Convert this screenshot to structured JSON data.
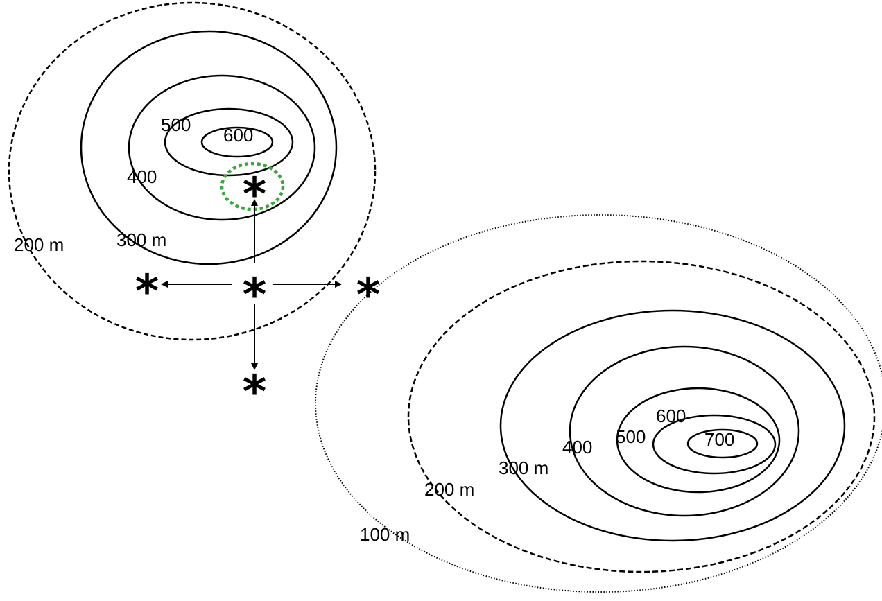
{
  "colors": {
    "line": "#000000",
    "current_position": "#1f6fc1",
    "rejected_neighbor": "#ff0000",
    "chosen_neighbor": "#00a651",
    "selection_ring": "#3ba63b"
  },
  "hill_left": {
    "labels": {
      "c200": "200 m",
      "c300": "300 m",
      "c400": "400",
      "c500": "500",
      "c600": "600"
    }
  },
  "hill_right": {
    "labels": {
      "c100": "100 m",
      "c200": "200 m",
      "c300": "300 m",
      "c400": "400",
      "c500": "500",
      "c600": "600",
      "c700": "700"
    }
  },
  "markers": {
    "symbol": "*",
    "current": {
      "symbol": "*",
      "color_key": "current_position"
    },
    "neighbors": [
      {
        "name": "up",
        "symbol": "*",
        "color_key": "chosen_neighbor",
        "selected": true
      },
      {
        "name": "left",
        "symbol": "*",
        "color_key": "rejected_neighbor",
        "selected": false
      },
      {
        "name": "right",
        "symbol": "*",
        "color_key": "rejected_neighbor",
        "selected": false
      },
      {
        "name": "down",
        "symbol": "*",
        "color_key": "rejected_neighbor",
        "selected": false
      }
    ]
  }
}
